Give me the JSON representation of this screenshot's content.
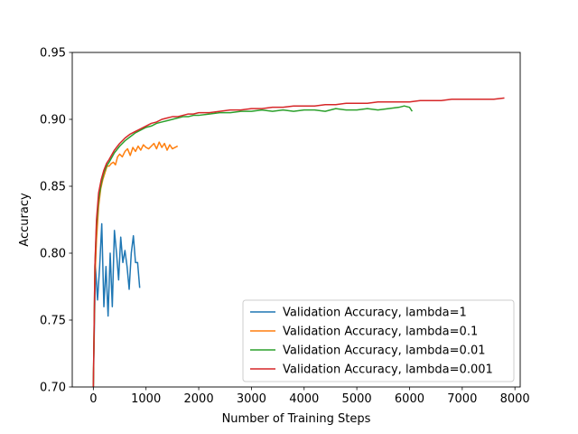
{
  "chart_data": {
    "type": "line",
    "title": "",
    "xlabel": "Number of Training Steps",
    "ylabel": "Accuracy",
    "xlim": [
      -400,
      8100
    ],
    "ylim": [
      0.7,
      0.95
    ],
    "xticks": [
      0,
      1000,
      2000,
      3000,
      4000,
      5000,
      6000,
      7000,
      8000
    ],
    "yticks": [
      0.7,
      0.75,
      0.8,
      0.85,
      0.9,
      0.95
    ],
    "xtick_labels": [
      "0",
      "1000",
      "2000",
      "3000",
      "4000",
      "5000",
      "6000",
      "7000",
      "8000"
    ],
    "ytick_labels": [
      "0.70",
      "0.75",
      "0.80",
      "0.85",
      "0.90",
      "0.95"
    ],
    "grid": false,
    "legend_position": "lower-right",
    "series": [
      {
        "name": "Validation Accuracy, lambda=1",
        "color": "#1f77b4",
        "points": [
          [
            0,
            0.7
          ],
          [
            40,
            0.79
          ],
          [
            80,
            0.765
          ],
          [
            120,
            0.79
          ],
          [
            160,
            0.822
          ],
          [
            200,
            0.76
          ],
          [
            240,
            0.79
          ],
          [
            280,
            0.753
          ],
          [
            320,
            0.8
          ],
          [
            360,
            0.76
          ],
          [
            400,
            0.817
          ],
          [
            440,
            0.8
          ],
          [
            480,
            0.78
          ],
          [
            520,
            0.812
          ],
          [
            560,
            0.793
          ],
          [
            600,
            0.802
          ],
          [
            640,
            0.79
          ],
          [
            680,
            0.773
          ],
          [
            720,
            0.8
          ],
          [
            760,
            0.813
          ],
          [
            800,
            0.793
          ],
          [
            840,
            0.793
          ],
          [
            880,
            0.774
          ]
        ]
      },
      {
        "name": "Validation Accuracy, lambda=0.1",
        "color": "#ff7f0e",
        "points": [
          [
            0,
            0.7
          ],
          [
            30,
            0.78
          ],
          [
            60,
            0.81
          ],
          [
            100,
            0.835
          ],
          [
            140,
            0.848
          ],
          [
            180,
            0.855
          ],
          [
            220,
            0.86
          ],
          [
            260,
            0.865
          ],
          [
            300,
            0.865
          ],
          [
            340,
            0.867
          ],
          [
            380,
            0.868
          ],
          [
            420,
            0.866
          ],
          [
            460,
            0.872
          ],
          [
            500,
            0.874
          ],
          [
            550,
            0.872
          ],
          [
            600,
            0.876
          ],
          [
            650,
            0.878
          ],
          [
            700,
            0.873
          ],
          [
            750,
            0.879
          ],
          [
            800,
            0.876
          ],
          [
            850,
            0.88
          ],
          [
            900,
            0.877
          ],
          [
            950,
            0.881
          ],
          [
            1000,
            0.879
          ],
          [
            1050,
            0.878
          ],
          [
            1100,
            0.88
          ],
          [
            1150,
            0.882
          ],
          [
            1200,
            0.878
          ],
          [
            1250,
            0.883
          ],
          [
            1300,
            0.879
          ],
          [
            1350,
            0.882
          ],
          [
            1400,
            0.877
          ],
          [
            1450,
            0.881
          ],
          [
            1500,
            0.878
          ],
          [
            1550,
            0.879
          ],
          [
            1600,
            0.88
          ]
        ]
      },
      {
        "name": "Validation Accuracy, lambda=0.01",
        "color": "#2ca02c",
        "points": [
          [
            0,
            0.7
          ],
          [
            30,
            0.79
          ],
          [
            60,
            0.82
          ],
          [
            100,
            0.84
          ],
          [
            150,
            0.852
          ],
          [
            200,
            0.86
          ],
          [
            250,
            0.865
          ],
          [
            300,
            0.868
          ],
          [
            400,
            0.875
          ],
          [
            500,
            0.88
          ],
          [
            600,
            0.884
          ],
          [
            700,
            0.887
          ],
          [
            800,
            0.89
          ],
          [
            900,
            0.892
          ],
          [
            1000,
            0.894
          ],
          [
            1100,
            0.895
          ],
          [
            1200,
            0.897
          ],
          [
            1300,
            0.898
          ],
          [
            1400,
            0.899
          ],
          [
            1500,
            0.9
          ],
          [
            1600,
            0.901
          ],
          [
            1700,
            0.902
          ],
          [
            1800,
            0.902
          ],
          [
            1900,
            0.903
          ],
          [
            2000,
            0.903
          ],
          [
            2200,
            0.904
          ],
          [
            2400,
            0.905
          ],
          [
            2600,
            0.905
          ],
          [
            2800,
            0.906
          ],
          [
            3000,
            0.906
          ],
          [
            3200,
            0.907
          ],
          [
            3400,
            0.906
          ],
          [
            3600,
            0.907
          ],
          [
            3800,
            0.906
          ],
          [
            4000,
            0.907
          ],
          [
            4200,
            0.907
          ],
          [
            4400,
            0.906
          ],
          [
            4600,
            0.908
          ],
          [
            4800,
            0.907
          ],
          [
            5000,
            0.907
          ],
          [
            5200,
            0.908
          ],
          [
            5400,
            0.907
          ],
          [
            5600,
            0.908
          ],
          [
            5800,
            0.909
          ],
          [
            5900,
            0.91
          ],
          [
            6000,
            0.909
          ],
          [
            6050,
            0.906
          ]
        ]
      },
      {
        "name": "Validation Accuracy, lambda=0.001",
        "color": "#d62728",
        "points": [
          [
            0,
            0.7
          ],
          [
            30,
            0.79
          ],
          [
            60,
            0.825
          ],
          [
            100,
            0.845
          ],
          [
            150,
            0.855
          ],
          [
            200,
            0.862
          ],
          [
            250,
            0.867
          ],
          [
            300,
            0.87
          ],
          [
            400,
            0.877
          ],
          [
            500,
            0.882
          ],
          [
            600,
            0.886
          ],
          [
            700,
            0.889
          ],
          [
            800,
            0.891
          ],
          [
            900,
            0.893
          ],
          [
            1000,
            0.895
          ],
          [
            1100,
            0.897
          ],
          [
            1200,
            0.898
          ],
          [
            1300,
            0.9
          ],
          [
            1400,
            0.901
          ],
          [
            1500,
            0.902
          ],
          [
            1600,
            0.902
          ],
          [
            1700,
            0.903
          ],
          [
            1800,
            0.904
          ],
          [
            1900,
            0.904
          ],
          [
            2000,
            0.905
          ],
          [
            2200,
            0.905
          ],
          [
            2400,
            0.906
          ],
          [
            2600,
            0.907
          ],
          [
            2800,
            0.907
          ],
          [
            3000,
            0.908
          ],
          [
            3200,
            0.908
          ],
          [
            3400,
            0.909
          ],
          [
            3600,
            0.909
          ],
          [
            3800,
            0.91
          ],
          [
            4000,
            0.91
          ],
          [
            4200,
            0.91
          ],
          [
            4400,
            0.911
          ],
          [
            4600,
            0.911
          ],
          [
            4800,
            0.912
          ],
          [
            5000,
            0.912
          ],
          [
            5200,
            0.912
          ],
          [
            5400,
            0.913
          ],
          [
            5600,
            0.913
          ],
          [
            5800,
            0.913
          ],
          [
            6000,
            0.913
          ],
          [
            6200,
            0.914
          ],
          [
            6400,
            0.914
          ],
          [
            6600,
            0.914
          ],
          [
            6800,
            0.915
          ],
          [
            7000,
            0.915
          ],
          [
            7200,
            0.915
          ],
          [
            7400,
            0.915
          ],
          [
            7600,
            0.915
          ],
          [
            7800,
            0.916
          ]
        ]
      }
    ]
  }
}
